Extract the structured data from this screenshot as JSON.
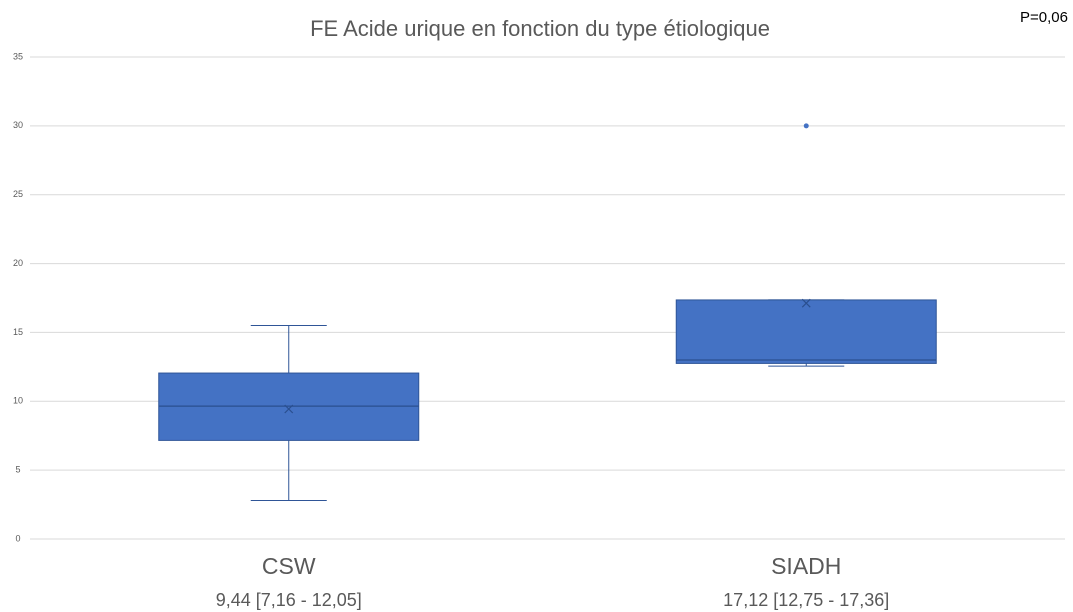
{
  "chart_data": {
    "type": "box",
    "title": "FE Acide urique en fonction du type étiologique",
    "annotation": "P=0,06",
    "categories": [
      "CSW",
      "SIADH"
    ],
    "category_notes": [
      "9,44 [7,16 - 12,05]",
      "17,12 [12,75 - 17,36]"
    ],
    "color": "#4472c4",
    "boxes": [
      {
        "min": 2.8,
        "q1": 7.16,
        "median": 9.65,
        "q3": 12.05,
        "max": 15.5,
        "mean": 9.44,
        "outliers": []
      },
      {
        "min": 12.55,
        "q1": 12.75,
        "median": 13.0,
        "q3": 17.36,
        "max": 17.36,
        "mean": 17.12,
        "outliers": [
          30
        ]
      }
    ],
    "ylim": [
      0,
      35
    ],
    "yticks": [
      0,
      5,
      10,
      15,
      20,
      25,
      30,
      35
    ],
    "grid": true
  }
}
